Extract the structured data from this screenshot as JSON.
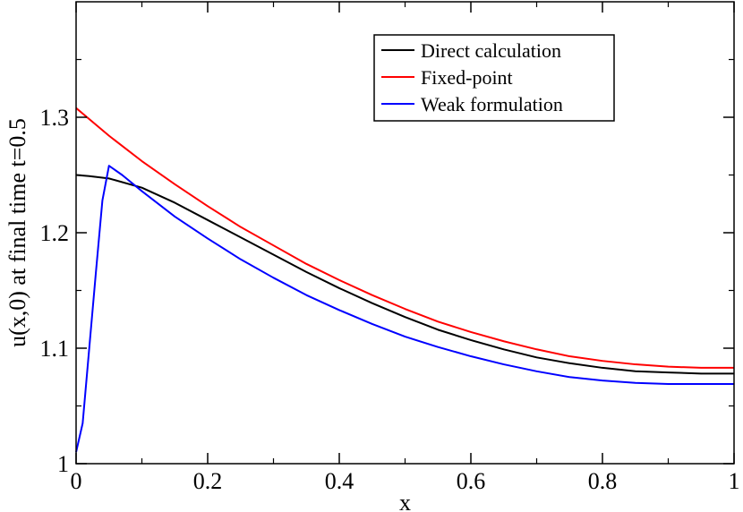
{
  "chart_data": {
    "type": "line",
    "title": "",
    "xlabel": "x",
    "ylabel": "u(x,0) at final time t=0.5",
    "xlim": [
      0,
      1
    ],
    "ylim": [
      1.0,
      1.4
    ],
    "x_ticks": [
      0,
      0.2,
      0.4,
      0.6,
      0.8,
      1
    ],
    "x_tick_labels": [
      "0",
      "0.2",
      "0.4",
      "0.6",
      "0.8",
      "1"
    ],
    "y_ticks": [
      1.0,
      1.1,
      1.2,
      1.3
    ],
    "y_tick_labels": [
      "1",
      "1.1",
      "1.2",
      "1.3"
    ],
    "grid": false,
    "legend_position": "top-right",
    "series": [
      {
        "name": "Direct calculation",
        "color": "#000000",
        "x": [
          0,
          0.02,
          0.05,
          0.1,
          0.15,
          0.2,
          0.25,
          0.3,
          0.35,
          0.4,
          0.45,
          0.5,
          0.55,
          0.6,
          0.65,
          0.7,
          0.75,
          0.8,
          0.85,
          0.9,
          0.95,
          1.0
        ],
        "y": [
          1.25,
          1.249,
          1.247,
          1.239,
          1.226,
          1.211,
          1.196,
          1.181,
          1.166,
          1.152,
          1.139,
          1.127,
          1.116,
          1.107,
          1.099,
          1.092,
          1.087,
          1.083,
          1.08,
          1.079,
          1.078,
          1.078
        ]
      },
      {
        "name": "Fixed-point",
        "color": "#ff0000",
        "x": [
          0,
          0.05,
          0.1,
          0.15,
          0.2,
          0.25,
          0.3,
          0.35,
          0.4,
          0.45,
          0.5,
          0.55,
          0.6,
          0.65,
          0.7,
          0.75,
          0.8,
          0.85,
          0.9,
          0.95,
          1.0
        ],
        "y": [
          1.308,
          1.284,
          1.262,
          1.242,
          1.223,
          1.205,
          1.189,
          1.173,
          1.159,
          1.146,
          1.134,
          1.123,
          1.114,
          1.106,
          1.099,
          1.093,
          1.089,
          1.086,
          1.084,
          1.083,
          1.083
        ]
      },
      {
        "name": "Weak formulation",
        "color": "#0000ff",
        "x": [
          0,
          0.01,
          0.02,
          0.03,
          0.04,
          0.05,
          0.07,
          0.1,
          0.15,
          0.2,
          0.25,
          0.3,
          0.35,
          0.4,
          0.45,
          0.5,
          0.55,
          0.6,
          0.65,
          0.7,
          0.75,
          0.8,
          0.85,
          0.9,
          0.95,
          1.0
        ],
        "y": [
          1.01,
          1.035,
          1.1,
          1.165,
          1.228,
          1.258,
          1.25,
          1.236,
          1.214,
          1.195,
          1.177,
          1.161,
          1.146,
          1.133,
          1.121,
          1.11,
          1.101,
          1.093,
          1.086,
          1.08,
          1.075,
          1.072,
          1.07,
          1.069,
          1.069,
          1.069
        ]
      }
    ]
  }
}
